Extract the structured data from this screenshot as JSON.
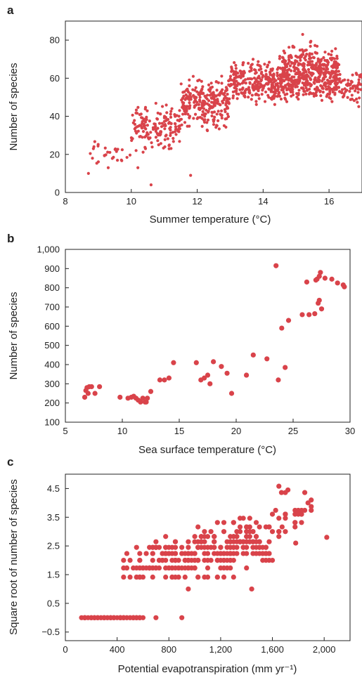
{
  "colors": {
    "point": "#d9434a",
    "axis": "#222222",
    "text": "#222222"
  },
  "chart_data": [
    {
      "panel": "a",
      "type": "scatter",
      "xlabel": "Summer temperature (°C)",
      "ylabel": "Number of species",
      "xlim": [
        8,
        17
      ],
      "ylim": [
        0,
        90
      ],
      "xticks": [
        "8",
        "10",
        "12",
        "14",
        "16"
      ],
      "yticks": [
        "0",
        "20",
        "40",
        "60",
        "80"
      ],
      "xtick_values": [
        8,
        10,
        12,
        14,
        16
      ],
      "ytick_values": [
        0,
        20,
        40,
        60,
        80
      ],
      "marker_size": "small",
      "clusters": [
        {
          "x_range": [
            8.6,
            10.0
          ],
          "y_range": [
            10,
            30
          ],
          "n": 25
        },
        {
          "x_range": [
            10.0,
            11.5
          ],
          "y_range": [
            18,
            50
          ],
          "n": 160
        },
        {
          "x_range": [
            11.5,
            13.0
          ],
          "y_range": [
            30,
            65
          ],
          "n": 260
        },
        {
          "x_range": [
            13.0,
            14.5
          ],
          "y_range": [
            42,
            72
          ],
          "n": 260
        },
        {
          "x_range": [
            14.5,
            16.3
          ],
          "y_range": [
            42,
            82
          ],
          "n": 520
        },
        {
          "x_range": [
            16.3,
            17.0
          ],
          "y_range": [
            42,
            70
          ],
          "n": 60
        }
      ],
      "points": [
        [
          8.7,
          10
        ],
        [
          8.85,
          23
        ],
        [
          10.6,
          4
        ],
        [
          11.8,
          9
        ],
        [
          9.3,
          13
        ],
        [
          9.7,
          17
        ],
        [
          10.2,
          13
        ],
        [
          16.7,
          49
        ],
        [
          16.9,
          57
        ],
        [
          15.2,
          83
        ]
      ]
    },
    {
      "panel": "b",
      "type": "scatter",
      "xlabel": "Sea surface temperature (°C)",
      "ylabel": "Number of species",
      "xlim": [
        5,
        30
      ],
      "ylim": [
        100,
        1000
      ],
      "xticks": [
        "5",
        "10",
        "15",
        "20",
        "25",
        "30"
      ],
      "yticks": [
        "100",
        "200",
        "300",
        "400",
        "500",
        "600",
        "700",
        "800",
        "900",
        "1,000"
      ],
      "xtick_values": [
        5,
        10,
        15,
        20,
        25,
        30
      ],
      "ytick_values": [
        100,
        200,
        300,
        400,
        500,
        600,
        700,
        800,
        900,
        1000
      ],
      "marker_size": "large",
      "points": [
        [
          6.7,
          230
        ],
        [
          6.8,
          265
        ],
        [
          6.9,
          280
        ],
        [
          7.0,
          250
        ],
        [
          7.1,
          285
        ],
        [
          7.3,
          285
        ],
        [
          7.6,
          250
        ],
        [
          8.0,
          285
        ],
        [
          9.8,
          230
        ],
        [
          10.5,
          225
        ],
        [
          10.8,
          230
        ],
        [
          11.0,
          235
        ],
        [
          11.2,
          225
        ],
        [
          11.4,
          215
        ],
        [
          11.6,
          205
        ],
        [
          11.8,
          225
        ],
        [
          12.0,
          205
        ],
        [
          12.1,
          205
        ],
        [
          12.2,
          225
        ],
        [
          12.5,
          260
        ],
        [
          13.3,
          320
        ],
        [
          13.7,
          320
        ],
        [
          14.1,
          330
        ],
        [
          14.5,
          410
        ],
        [
          16.5,
          410
        ],
        [
          16.9,
          320
        ],
        [
          17.2,
          330
        ],
        [
          17.5,
          345
        ],
        [
          17.7,
          300
        ],
        [
          18.0,
          415
        ],
        [
          18.7,
          390
        ],
        [
          19.2,
          355
        ],
        [
          19.6,
          250
        ],
        [
          20.9,
          345
        ],
        [
          21.5,
          450
        ],
        [
          22.7,
          430
        ],
        [
          23.5,
          915
        ],
        [
          23.7,
          320
        ],
        [
          24.0,
          590
        ],
        [
          24.3,
          385
        ],
        [
          24.6,
          630
        ],
        [
          25.8,
          660
        ],
        [
          26.2,
          830
        ],
        [
          26.4,
          660
        ],
        [
          26.9,
          665
        ],
        [
          27.0,
          840
        ],
        [
          27.1,
          845
        ],
        [
          27.2,
          720
        ],
        [
          27.3,
          735
        ],
        [
          27.3,
          860
        ],
        [
          27.4,
          880
        ],
        [
          27.5,
          690
        ],
        [
          27.8,
          850
        ],
        [
          28.4,
          845
        ],
        [
          28.9,
          825
        ],
        [
          29.4,
          815
        ],
        [
          29.5,
          805
        ]
      ]
    },
    {
      "panel": "c",
      "type": "scatter",
      "xlabel": "Potential evapotranspiration (mm yr⁻¹)",
      "ylabel": "Square root of number of species",
      "xlim": [
        0,
        2200
      ],
      "ylim": [
        -0.8,
        5.0
      ],
      "xticks": [
        "0",
        "400",
        "800",
        "1,200",
        "1,600",
        "2,000"
      ],
      "yticks": [
        "−0.5",
        "0.5",
        "1.5",
        "2.5",
        "3.5",
        "4.5"
      ],
      "xtick_values": [
        0,
        400,
        800,
        1200,
        1600,
        2000
      ],
      "ytick_values": [
        -0.5,
        0.5,
        1.5,
        2.5,
        3.5,
        4.5
      ],
      "marker_size": "large",
      "x_grid_step": 25,
      "y_levels": [
        0,
        1,
        1.4142,
        1.7321,
        2,
        2.2361,
        2.4495,
        2.6458,
        2.8284,
        3,
        3.1623,
        3.3166,
        3.4641,
        3.6056,
        3.7417,
        3.873,
        4,
        4.1231,
        4.2426,
        4.3589,
        4.4721,
        4.5826
      ],
      "clusters": [
        {
          "x_range": [
            130,
            600
          ],
          "y": 0,
          "n": 60
        },
        {
          "x_range": [
            450,
            650
          ],
          "y_range": [
            1,
            2.5
          ],
          "n": 30
        },
        {
          "x_range": [
            650,
            1000
          ],
          "y_range": [
            1,
            3.1
          ],
          "n": 100
        },
        {
          "x_range": [
            1000,
            1300
          ],
          "y_range": [
            1,
            3.6
          ],
          "n": 90
        },
        {
          "x_range": [
            1300,
            1600
          ],
          "y_range": [
            1.4,
            3.8
          ],
          "n": 80
        },
        {
          "x_range": [
            1600,
            1900
          ],
          "y_range": [
            2.4,
            4.6
          ],
          "n": 30
        }
      ],
      "points": [
        [
          700,
          0
        ],
        [
          900,
          0
        ],
        [
          1440,
          1
        ],
        [
          1780,
          2.6
        ],
        [
          2020,
          2.8
        ],
        [
          1900,
          4.1
        ],
        [
          1650,
          4.58
        ],
        [
          1850,
          4.36
        ],
        [
          1720,
          4.45
        ],
        [
          1670,
          4.36
        ]
      ]
    }
  ]
}
